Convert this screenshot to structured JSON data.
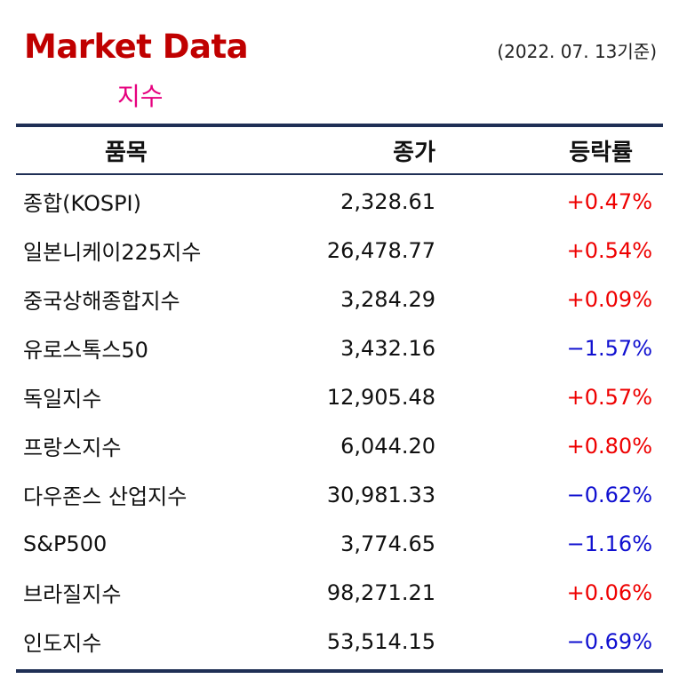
{
  "header": {
    "title": "Market Data",
    "subtitle": "지수",
    "date": "(2022. 07. 13기준)"
  },
  "table": {
    "columns": [
      "품목",
      "종가",
      "등락률"
    ],
    "rows": [
      {
        "name": "종합(KOSPI)",
        "close": "2,328.61",
        "change": "+0.47%",
        "direction": "up"
      },
      {
        "name": "일본니케이225지수",
        "close": "26,478.77",
        "change": "+0.54%",
        "direction": "up"
      },
      {
        "name": "중국상해종합지수",
        "close": "3,284.29",
        "change": "+0.09%",
        "direction": "up"
      },
      {
        "name": "유로스톡스50",
        "close": "3,432.16",
        "change": "−1.57%",
        "direction": "down"
      },
      {
        "name": "독일지수",
        "close": "12,905.48",
        "change": "+0.57%",
        "direction": "up"
      },
      {
        "name": "프랑스지수",
        "close": "6,044.20",
        "change": "+0.80%",
        "direction": "up"
      },
      {
        "name": "다우존스 산업지수",
        "close": "30,981.33",
        "change": "−0.62%",
        "direction": "down"
      },
      {
        "name": "S&P500",
        "close": "3,774.65",
        "change": "−1.16%",
        "direction": "down"
      },
      {
        "name": "브라질지수",
        "close": "98,271.21",
        "change": "+0.06%",
        "direction": "up"
      },
      {
        "name": "인도지수",
        "close": "53,514.15",
        "change": "−0.69%",
        "direction": "down"
      }
    ]
  },
  "colors": {
    "title": "#c00000",
    "subtitle": "#e6007e",
    "rule": "#1f2f55",
    "up": "#ee0000",
    "down": "#1010d0"
  }
}
